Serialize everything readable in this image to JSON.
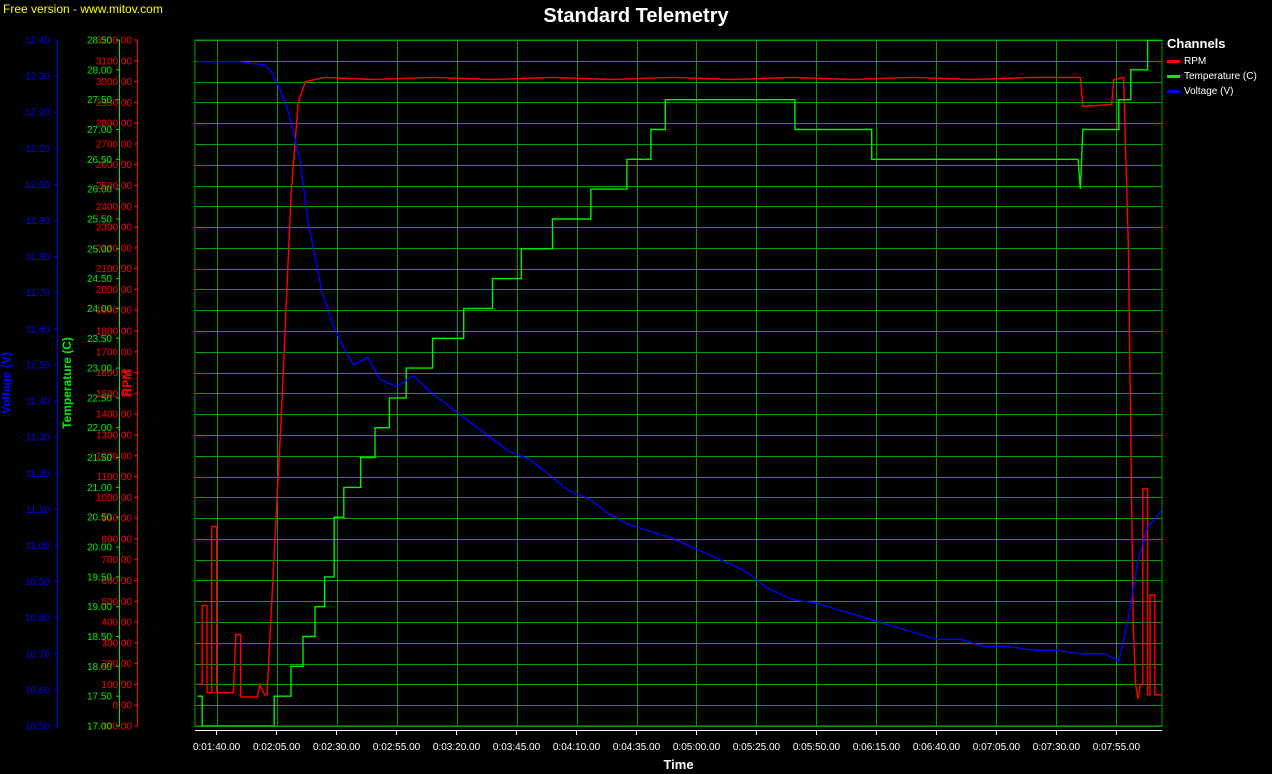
{
  "watermark": "Free version - www.mitov.com",
  "legend_title": "Channels",
  "colors": {
    "RPM": "#ff0000",
    "Temperature": "#00ee00",
    "Voltage": "#0000ff",
    "grid": "#00a000",
    "background": "#000000"
  },
  "chart_data": {
    "type": "line",
    "title": "Standard Telemetry",
    "xlabel": "Time",
    "x_tick_labels": [
      "0:01:40.00",
      "0:02:05.00",
      "0:02:30.00",
      "0:02:55.00",
      "0:03:20.00",
      "0:03:45.00",
      "0:04:10.00",
      "0:04:35.00",
      "0:05:00.00",
      "0:05:25.00",
      "0:05:50.00",
      "0:06:15.00",
      "0:06:40.00",
      "0:07:05.00",
      "0:07:30.00",
      "0:07:55.00"
    ],
    "xlim_seconds": [
      91,
      494
    ],
    "grid": true,
    "legend_position": "right",
    "axes": [
      {
        "name": "RPM",
        "label": "RPM",
        "ylim": [
          -100,
          3200
        ],
        "step": 100,
        "decimals": 2,
        "tick_labels": [
          "-100.00",
          "0.00",
          "100.00",
          "200.00",
          "300.00",
          "400.00",
          "500.00",
          "600.00",
          "700.00",
          "800.00",
          "900.00",
          "1000.00",
          "1100.00",
          "1200.00",
          "1300.00",
          "1400.00",
          "1500.00",
          "1600.00",
          "1700.00",
          "1800.00",
          "1900.00",
          "2000.00",
          "2100.00",
          "2200.00",
          "2300.00",
          "2400.00",
          "2500.00",
          "2600.00",
          "2700.00",
          "2800.00",
          "2900.00",
          "3000.00",
          "3100.00",
          "3200.00"
        ]
      },
      {
        "name": "Temperature (C)",
        "label": "Temperature (C)",
        "ylim": [
          17.0,
          28.5
        ],
        "step": 0.5,
        "decimals": 2,
        "tick_labels": [
          "17.00",
          "17.50",
          "18.00",
          "18.50",
          "19.00",
          "19.50",
          "20.00",
          "20.50",
          "21.00",
          "21.50",
          "22.00",
          "22.50",
          "23.00",
          "23.50",
          "24.00",
          "24.50",
          "25.00",
          "25.50",
          "26.00",
          "26.50",
          "27.00",
          "27.50",
          "28.00",
          "28.50"
        ]
      },
      {
        "name": "Voltage (V)",
        "label": "Voltage (V)",
        "ylim": [
          10.5,
          12.4
        ],
        "step": 0.1,
        "decimals": 2,
        "tick_labels": [
          "10.50",
          "10.60",
          "10.70",
          "10.80",
          "10.90",
          "11.00",
          "11.10",
          "11.20",
          "11.30",
          "11.40",
          "11.50",
          "11.60",
          "11.70",
          "11.80",
          "11.90",
          "12.00",
          "12.10",
          "12.20",
          "12.30",
          "12.40"
        ]
      }
    ],
    "series": [
      {
        "name": "RPM",
        "axis": 0,
        "points": [
          [
            92,
            100
          ],
          [
            94,
            100
          ],
          [
            94,
            480
          ],
          [
            96,
            480
          ],
          [
            96,
            60
          ],
          [
            98,
            60
          ],
          [
            98,
            860
          ],
          [
            100,
            860
          ],
          [
            100,
            60
          ],
          [
            107,
            60
          ],
          [
            108,
            340
          ],
          [
            110,
            340
          ],
          [
            110,
            40
          ],
          [
            117,
            40
          ],
          [
            118,
            100
          ],
          [
            120,
            50
          ],
          [
            121,
            50
          ],
          [
            127,
            1400
          ],
          [
            131,
            2450
          ],
          [
            134,
            2900
          ],
          [
            137,
            3000
          ],
          [
            145,
            3020
          ],
          [
            165,
            3010
          ],
          [
            190,
            3020
          ],
          [
            215,
            3010
          ],
          [
            240,
            3020
          ],
          [
            265,
            3010
          ],
          [
            290,
            3020
          ],
          [
            315,
            3010
          ],
          [
            340,
            3020
          ],
          [
            365,
            3010
          ],
          [
            390,
            3020
          ],
          [
            415,
            3010
          ],
          [
            440,
            3020
          ],
          [
            460,
            3020
          ],
          [
            461,
            2880
          ],
          [
            473,
            2890
          ],
          [
            474,
            3010
          ],
          [
            478,
            3020
          ],
          [
            480,
            2200
          ],
          [
            482,
            400
          ],
          [
            483,
            100
          ],
          [
            484,
            30
          ],
          [
            485,
            100
          ],
          [
            486,
            100
          ],
          [
            486,
            1040
          ],
          [
            488,
            1040
          ],
          [
            488,
            50
          ],
          [
            489,
            50
          ],
          [
            489,
            530
          ],
          [
            491,
            530
          ],
          [
            491,
            50
          ],
          [
            494,
            50
          ]
        ]
      },
      {
        "name": "Temperature (C)",
        "axis": 1,
        "points": [
          [
            92,
            17.5
          ],
          [
            94,
            17.5
          ],
          [
            94,
            17.0
          ],
          [
            124,
            17.0
          ],
          [
            124,
            17.5
          ],
          [
            131,
            17.5
          ],
          [
            131,
            18.0
          ],
          [
            136,
            18.0
          ],
          [
            136,
            18.5
          ],
          [
            141,
            18.5
          ],
          [
            141,
            19.0
          ],
          [
            145,
            19.0
          ],
          [
            145,
            19.5
          ],
          [
            149,
            19.5
          ],
          [
            149,
            20.5
          ],
          [
            153,
            20.5
          ],
          [
            153,
            21.0
          ],
          [
            160,
            21.0
          ],
          [
            160,
            21.5
          ],
          [
            166,
            21.5
          ],
          [
            166,
            22.0
          ],
          [
            172,
            22.0
          ],
          [
            172,
            22.5
          ],
          [
            179,
            22.5
          ],
          [
            179,
            23.0
          ],
          [
            190,
            23.0
          ],
          [
            190,
            23.5
          ],
          [
            203,
            23.5
          ],
          [
            203,
            24.0
          ],
          [
            215,
            24.0
          ],
          [
            215,
            24.5
          ],
          [
            227,
            24.5
          ],
          [
            227,
            25.0
          ],
          [
            240,
            25.0
          ],
          [
            240,
            25.5
          ],
          [
            256,
            25.5
          ],
          [
            256,
            26.0
          ],
          [
            271,
            26.0
          ],
          [
            271,
            26.5
          ],
          [
            281,
            26.5
          ],
          [
            281,
            27.0
          ],
          [
            287,
            27.0
          ],
          [
            287,
            27.5
          ],
          [
            303,
            27.5
          ],
          [
            303,
            27.5
          ],
          [
            320,
            27.5
          ],
          [
            320,
            27.5
          ],
          [
            341,
            27.5
          ],
          [
            341,
            27.0
          ],
          [
            373,
            27.0
          ],
          [
            373,
            26.5
          ],
          [
            459,
            26.5
          ],
          [
            460,
            26.0
          ],
          [
            461,
            27.0
          ],
          [
            476,
            27.0
          ],
          [
            476,
            27.5
          ],
          [
            481,
            27.5
          ],
          [
            481,
            28.0
          ],
          [
            488,
            28.0
          ],
          [
            488,
            28.5
          ],
          [
            494,
            28.5
          ]
        ]
      },
      {
        "name": "Voltage (V)",
        "axis": 2,
        "points": [
          [
            92,
            12.34
          ],
          [
            110,
            12.34
          ],
          [
            120,
            12.33
          ],
          [
            123,
            12.31
          ],
          [
            126,
            12.27
          ],
          [
            130,
            12.2
          ],
          [
            135,
            12.06
          ],
          [
            138,
            11.9
          ],
          [
            141,
            11.8
          ],
          [
            144,
            11.7
          ],
          [
            148,
            11.62
          ],
          [
            152,
            11.56
          ],
          [
            157,
            11.5
          ],
          [
            163,
            11.52
          ],
          [
            168,
            11.46
          ],
          [
            175,
            11.44
          ],
          [
            182,
            11.47
          ],
          [
            190,
            11.42
          ],
          [
            198,
            11.38
          ],
          [
            206,
            11.34
          ],
          [
            214,
            11.3
          ],
          [
            222,
            11.26
          ],
          [
            230,
            11.24
          ],
          [
            238,
            11.2
          ],
          [
            247,
            11.15
          ],
          [
            255,
            11.13
          ],
          [
            263,
            11.09
          ],
          [
            271,
            11.06
          ],
          [
            280,
            11.04
          ],
          [
            290,
            11.02
          ],
          [
            300,
            10.99
          ],
          [
            310,
            10.96
          ],
          [
            320,
            10.93
          ],
          [
            330,
            10.88
          ],
          [
            340,
            10.85
          ],
          [
            350,
            10.84
          ],
          [
            360,
            10.82
          ],
          [
            370,
            10.8
          ],
          [
            380,
            10.78
          ],
          [
            390,
            10.76
          ],
          [
            400,
            10.74
          ],
          [
            410,
            10.74
          ],
          [
            420,
            10.72
          ],
          [
            430,
            10.72
          ],
          [
            440,
            10.71
          ],
          [
            450,
            10.71
          ],
          [
            460,
            10.7
          ],
          [
            470,
            10.7
          ],
          [
            476,
            10.68
          ],
          [
            480,
            10.8
          ],
          [
            484,
            10.96
          ],
          [
            488,
            11.05
          ],
          [
            492,
            11.08
          ],
          [
            494,
            11.1
          ]
        ]
      }
    ]
  }
}
